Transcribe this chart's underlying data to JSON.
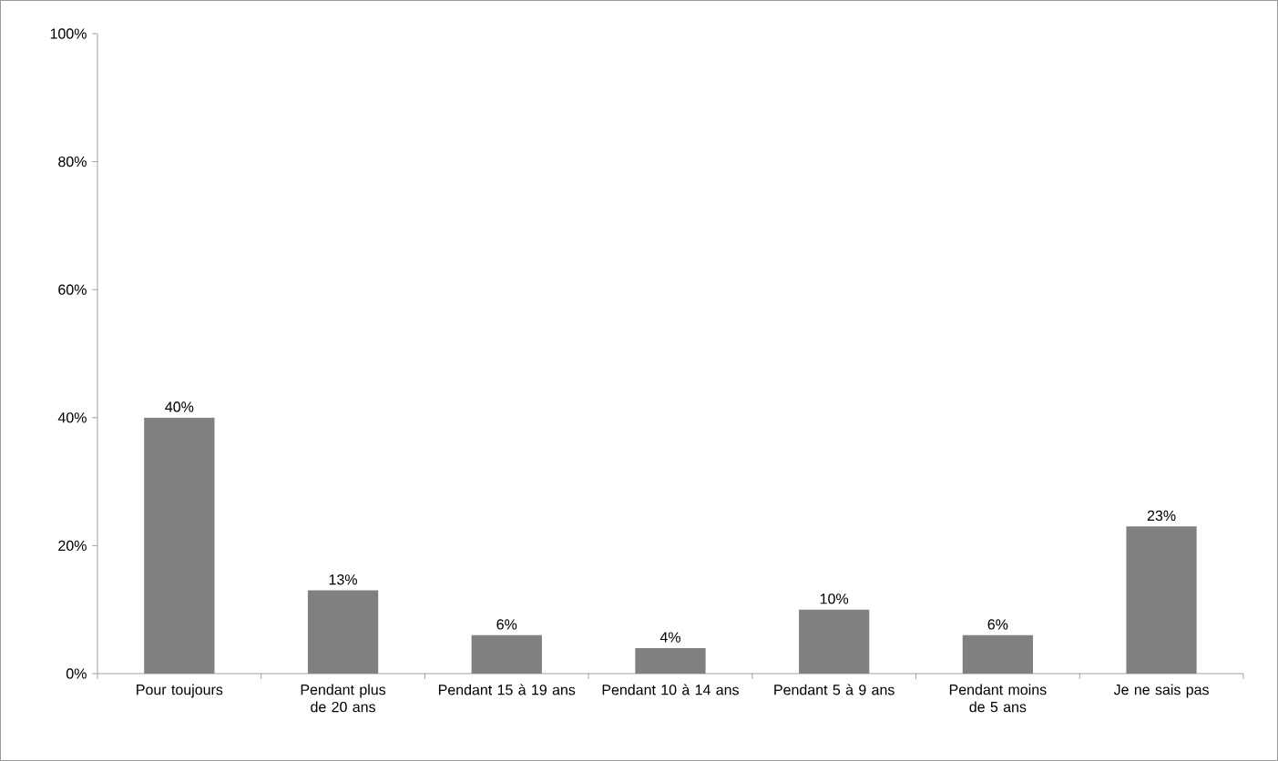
{
  "chart_data": {
    "type": "bar",
    "categories": [
      "Pour toujours",
      "Pendant plus de 20 ans",
      "Pendant 15 à 19 ans",
      "Pendant 10 à 14 ans",
      "Pendant 5 à 9 ans",
      "Pendant moins de 5 ans",
      "Je ne sais pas"
    ],
    "values": [
      40,
      13,
      6,
      4,
      10,
      6,
      23
    ],
    "value_labels": [
      "40%",
      "13%",
      "6%",
      "4%",
      "10%",
      "6%",
      "23%"
    ],
    "color": "#808080",
    "ylim": [
      0,
      100
    ],
    "yticks": [
      {
        "value": 0,
        "label": "0%"
      },
      {
        "value": 20,
        "label": "20%"
      },
      {
        "value": 40,
        "label": "40%"
      },
      {
        "value": 60,
        "label": "60%"
      },
      {
        "value": 80,
        "label": "80%"
      },
      {
        "value": 100,
        "label": "100%"
      }
    ],
    "grid": false
  }
}
